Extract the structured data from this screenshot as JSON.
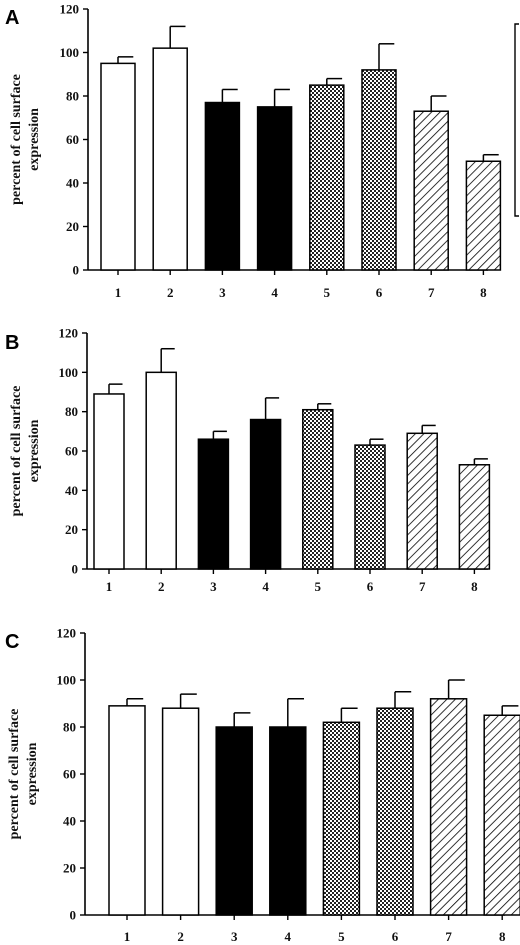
{
  "chart_data": [
    {
      "type": "bar",
      "panel_label": "A",
      "ylabel_lines": [
        "percent of cell surface",
        "expression"
      ],
      "categories": [
        "1",
        "2",
        "3",
        "4",
        "5",
        "6",
        "7",
        "8"
      ],
      "values": [
        95,
        102,
        77,
        75,
        85,
        92,
        73,
        50
      ],
      "errors": [
        3,
        10,
        6,
        8,
        3,
        12,
        7,
        3
      ],
      "patterns": [
        "white",
        "white",
        "black",
        "black",
        "dots",
        "dots",
        "hatch",
        "hatch"
      ],
      "ylim": [
        0,
        120
      ],
      "yticks": [
        "0",
        "20",
        "40",
        "60",
        "80",
        "100",
        "120"
      ]
    },
    {
      "type": "bar",
      "panel_label": "B",
      "ylabel_lines": [
        "percent of cell surface",
        "expression"
      ],
      "categories": [
        "1",
        "2",
        "3",
        "4",
        "5",
        "6",
        "7",
        "8"
      ],
      "values": [
        89,
        100,
        66,
        76,
        81,
        63,
        69,
        53
      ],
      "errors": [
        5,
        12,
        4,
        11,
        3,
        3,
        4,
        3
      ],
      "patterns": [
        "white",
        "white",
        "black",
        "black",
        "dots",
        "dots",
        "hatch",
        "hatch"
      ],
      "ylim": [
        0,
        120
      ],
      "yticks": [
        "0",
        "20",
        "40",
        "60",
        "80",
        "100",
        "120"
      ]
    },
    {
      "type": "bar",
      "panel_label": "C",
      "ylabel_lines": [
        "percent of cell surface",
        "expression"
      ],
      "categories": [
        "1",
        "2",
        "3",
        "4",
        "5",
        "6",
        "7",
        "8"
      ],
      "values": [
        89,
        88,
        80,
        80,
        82,
        88,
        92,
        85
      ],
      "errors": [
        3,
        6,
        6,
        12,
        6,
        7,
        8,
        4
      ],
      "patterns": [
        "white",
        "white",
        "black",
        "black",
        "dots",
        "dots",
        "hatch",
        "hatch"
      ],
      "ylim": [
        0,
        120
      ],
      "yticks": [
        "0",
        "20",
        "40",
        "60",
        "80",
        "100",
        "120"
      ]
    }
  ]
}
